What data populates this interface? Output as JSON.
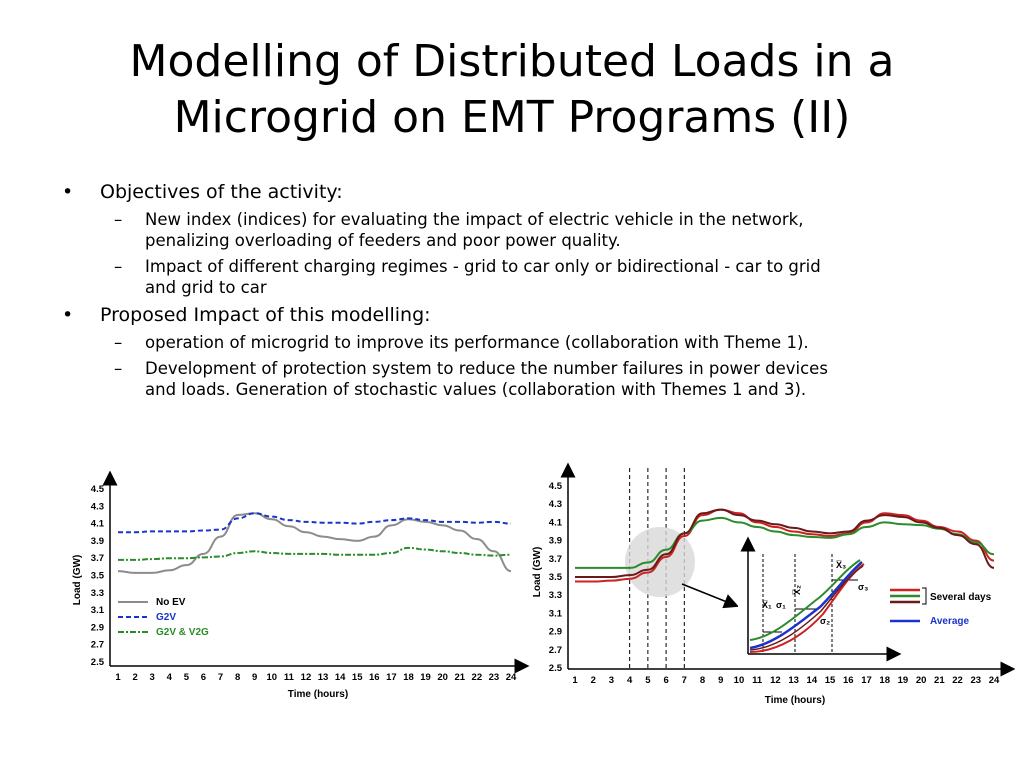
{
  "slide": {
    "title_line1": "Modelling of Distributed Loads in a",
    "title_line2": "Microgrid on EMT Programs (II)",
    "bullets": [
      {
        "text": "Objectives of the activity:",
        "sub": [
          {
            "line1": "New index (indices) for evaluating the impact of electric vehicle in the network,",
            "line2": "penalizing overloading of feeders and poor power quality."
          },
          {
            "line1": "Impact of different charging regimes -  grid to car only or bidirectional  - car to grid",
            "line2": "and grid to car"
          }
        ]
      },
      {
        "text": "Proposed Impact of this modelling:",
        "sub": [
          {
            "line1": "operation  of  microgrid to improve its performance (collaboration with Theme 1).",
            "line2": ""
          },
          {
            "line1": "Development of  protection system to reduce the number failures in power devices",
            "line2": "and loads. Generation of stochastic values (collaboration with Themes 1 and 3)."
          }
        ]
      }
    ]
  },
  "chart_data": [
    {
      "type": "line",
      "xlabel": "Time (hours)",
      "ylabel": "Load (GW)",
      "x": [
        1,
        2,
        3,
        4,
        5,
        6,
        7,
        8,
        9,
        10,
        11,
        12,
        13,
        14,
        15,
        16,
        17,
        18,
        19,
        20,
        21,
        22,
        23,
        24
      ],
      "ylim": [
        2.5,
        4.5
      ],
      "yticks": [
        "4.5",
        "4.3",
        "4.1",
        "3.9",
        "3.7",
        "3.5",
        "3.3",
        "3.1",
        "2.9",
        "2.7",
        "2.5"
      ],
      "xticks": [
        "1",
        "2",
        "3",
        "4",
        "5",
        "6",
        "7",
        "8",
        "9",
        "10",
        "11",
        "12",
        "13",
        "14",
        "15",
        "16",
        "17",
        "18",
        "19",
        "20",
        "21",
        "22",
        "23",
        "24"
      ],
      "legend": "lower-left",
      "series": [
        {
          "name": "No EV",
          "color": "#8c8c8c",
          "style": "solid",
          "values": [
            3.55,
            3.53,
            3.53,
            3.56,
            3.62,
            3.75,
            3.95,
            4.2,
            4.22,
            4.15,
            4.07,
            4.0,
            3.95,
            3.92,
            3.9,
            3.95,
            4.08,
            4.15,
            4.12,
            4.08,
            4.02,
            3.92,
            3.78,
            3.55
          ]
        },
        {
          "name": "G2V",
          "color": "#1a33cc",
          "style": "dashed",
          "values": [
            4.0,
            4.0,
            4.01,
            4.01,
            4.01,
            4.02,
            4.03,
            4.16,
            4.22,
            4.18,
            4.14,
            4.12,
            4.11,
            4.11,
            4.1,
            4.12,
            4.14,
            4.16,
            4.14,
            4.12,
            4.12,
            4.11,
            4.12,
            4.1
          ]
        },
        {
          "name": "G2V & V2G",
          "color": "#2a8c2a",
          "style": "dashdot",
          "values": [
            3.68,
            3.68,
            3.69,
            3.7,
            3.7,
            3.71,
            3.72,
            3.76,
            3.78,
            3.76,
            3.75,
            3.75,
            3.75,
            3.74,
            3.74,
            3.74,
            3.76,
            3.82,
            3.8,
            3.78,
            3.76,
            3.74,
            3.73,
            3.74
          ]
        }
      ]
    },
    {
      "type": "line",
      "xlabel": "Time (hours)",
      "ylabel": "Load (GW)",
      "x": [
        1,
        2,
        3,
        4,
        5,
        6,
        7,
        8,
        9,
        10,
        11,
        12,
        13,
        14,
        15,
        16,
        17,
        18,
        19,
        20,
        21,
        22,
        23,
        24
      ],
      "ylim": [
        2.5,
        4.5
      ],
      "yticks": [
        "4.5",
        "4.3",
        "4.1",
        "3.9",
        "3.7",
        "3.5",
        "3.3",
        "3.1",
        "2.9",
        "2.7",
        "2.5"
      ],
      "xticks": [
        "1",
        "2",
        "3",
        "4",
        "5",
        "6",
        "7",
        "8",
        "9",
        "10",
        "11",
        "12",
        "13",
        "14",
        "15",
        "16",
        "17",
        "18",
        "19",
        "20",
        "21",
        "22",
        "23",
        "24"
      ],
      "series": [
        {
          "name": "Several days",
          "color": "#cc2222",
          "style": "solid",
          "values": [
            3.45,
            3.45,
            3.46,
            3.48,
            3.55,
            3.72,
            3.95,
            4.18,
            4.24,
            4.2,
            4.1,
            4.05,
            4.0,
            3.97,
            3.95,
            3.98,
            4.1,
            4.2,
            4.18,
            4.12,
            4.05,
            4.0,
            3.9,
            3.68
          ]
        },
        {
          "name": "Several days",
          "color": "#2a8c2a",
          "style": "solid",
          "values": [
            3.6,
            3.6,
            3.6,
            3.6,
            3.66,
            3.8,
            3.98,
            4.12,
            4.15,
            4.1,
            4.05,
            4.0,
            3.96,
            3.94,
            3.93,
            3.97,
            4.05,
            4.1,
            4.08,
            4.07,
            4.03,
            3.97,
            3.88,
            3.75
          ]
        },
        {
          "name": "Several days",
          "color": "#6b1a1a",
          "style": "solid",
          "values": [
            3.5,
            3.5,
            3.5,
            3.52,
            3.58,
            3.75,
            3.98,
            4.2,
            4.24,
            4.18,
            4.12,
            4.08,
            4.04,
            4.0,
            3.98,
            4.0,
            4.12,
            4.18,
            4.16,
            4.1,
            4.04,
            3.96,
            3.86,
            3.6
          ]
        }
      ],
      "inset": {
        "labels": [
          "X̅₁",
          "X̅₂",
          "X̅₃",
          "σ₁",
          "σ₂",
          "σ₃"
        ],
        "legend": [
          {
            "name": "Several days"
          },
          {
            "name": "Average",
            "color": "#1a33cc"
          }
        ]
      }
    }
  ]
}
